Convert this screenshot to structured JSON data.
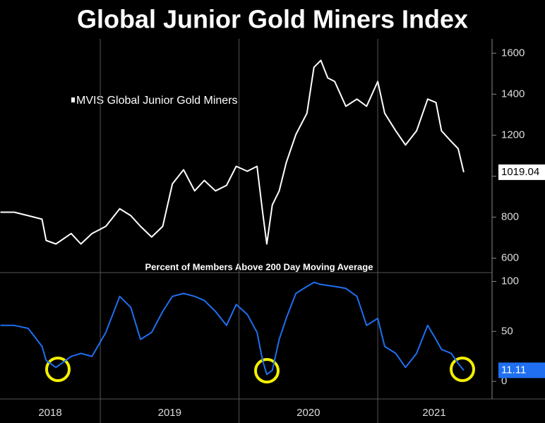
{
  "title": "Global Junior Gold Miners Index",
  "chart_data": [
    {
      "type": "line",
      "x": [
        2018.28,
        2018.38,
        2018.48,
        2018.58,
        2018.61,
        2018.68,
        2018.79,
        2018.86,
        2018.94,
        2019.04,
        2019.14,
        2019.22,
        2019.29,
        2019.37,
        2019.45,
        2019.52,
        2019.6,
        2019.68,
        2019.75,
        2019.83,
        2019.91,
        2019.98,
        2020.06,
        2020.13,
        2020.17,
        2020.2,
        2020.24,
        2020.29,
        2020.34,
        2020.41,
        2020.49,
        2020.54,
        2020.59,
        2020.64,
        2020.69,
        2020.77,
        2020.85,
        2020.92,
        2021.0,
        2021.05,
        2021.13,
        2021.2,
        2021.28,
        2021.36,
        2021.42,
        2021.46,
        2021.53,
        2021.58,
        2021.62
      ],
      "series": [
        {
          "name": "MVIS Global Junior Gold Miners",
          "color": "#ffffff",
          "values": [
            824,
            824,
            807,
            790,
            686,
            669,
            720,
            669,
            720,
            755,
            841,
            807,
            755,
            703,
            755,
            962,
            1031,
            928,
            979,
            928,
            955,
            1048,
            1024,
            1048,
            824,
            669,
            859,
            928,
            1065,
            1203,
            1307,
            1531,
            1565,
            1479,
            1462,
            1341,
            1376,
            1341,
            1462,
            1307,
            1221,
            1152,
            1221,
            1376,
            1359,
            1221,
            1169,
            1134,
            1019.04
          ]
        }
      ],
      "xlim": [
        2018.277,
        2021.814
      ],
      "ylim": [
        550,
        1670
      ],
      "yticks": [
        600,
        800,
        1000,
        1200,
        1400,
        1600
      ]
    },
    {
      "type": "line",
      "title": "Percent of Members Above 200 Day Moving Average",
      "x": [
        2018.28,
        2018.38,
        2018.48,
        2018.58,
        2018.61,
        2018.68,
        2018.79,
        2018.86,
        2018.94,
        2019.04,
        2019.14,
        2019.22,
        2019.29,
        2019.37,
        2019.45,
        2019.52,
        2019.6,
        2019.68,
        2019.75,
        2019.83,
        2019.91,
        2019.98,
        2020.06,
        2020.13,
        2020.17,
        2020.2,
        2020.24,
        2020.29,
        2020.34,
        2020.41,
        2020.49,
        2020.54,
        2020.59,
        2020.64,
        2020.69,
        2020.77,
        2020.85,
        2020.92,
        2021.0,
        2021.05,
        2021.13,
        2021.2,
        2021.28,
        2021.36,
        2021.42,
        2021.46,
        2021.53,
        2021.58,
        2021.62
      ],
      "series": [
        {
          "color": "#1f6ff0",
          "values": [
            56,
            56,
            53,
            35,
            21,
            14,
            25,
            28,
            25,
            49,
            85,
            74,
            42,
            49,
            70,
            85,
            88,
            85,
            81,
            70,
            56,
            77,
            67,
            49,
            21,
            7,
            11,
            42,
            63,
            88,
            95,
            99,
            97,
            96,
            95,
            93,
            85,
            56,
            63,
            35,
            28,
            14,
            28,
            56,
            42,
            32,
            28,
            18,
            11.11
          ]
        }
      ],
      "xlim": [
        2018.277,
        2021.814
      ],
      "ylim": [
        -7,
        106
      ],
      "yticks": [
        0,
        50,
        100
      ],
      "xticks": [
        2018,
        2019,
        2020,
        2021
      ]
    }
  ]
}
